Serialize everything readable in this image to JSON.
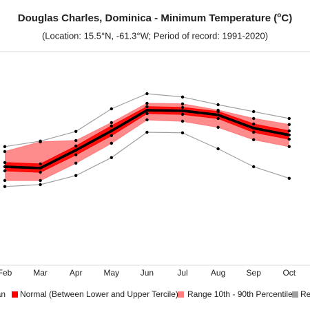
{
  "chart_data": {
    "type": "band-line",
    "title": [
      "Douglas Charles, Dominica - Minimum Temperature (",
      "o",
      "C)"
    ],
    "subtitle": "(Location: 15.5°N, -61.3°W; Period of record: 1991-2020)",
    "categories": [
      "Feb",
      "Mar",
      "Apr",
      "May",
      "Jun",
      "Jul",
      "Aug",
      "Sep",
      "Oct"
    ],
    "ylim": [
      18.5,
      26.5
    ],
    "bands": [
      {
        "name": "Record",
        "color": "#a0a0a0",
        "fill": false,
        "lower": [
          21.43,
          21.5,
          21.83,
          22.48,
          23.4,
          23.38,
          22.8,
          22.15,
          21.73
        ],
        "upper": [
          22.88,
          23.08,
          23.43,
          24.25,
          24.8,
          24.68,
          24.4,
          24.15,
          23.9
        ]
      },
      {
        "name": "Range 10th - 90th Percentile",
        "color": "#ff7f7f",
        "fill": true,
        "lower": [
          21.65,
          21.65,
          22.28,
          23.0,
          23.85,
          23.8,
          23.58,
          23.13,
          22.88
        ],
        "upper": [
          22.7,
          23.05,
          23.1,
          23.75,
          24.45,
          24.43,
          24.2,
          23.9,
          23.68
        ]
      },
      {
        "name": "Normal (Between Lower and Upper Tercile)",
        "color": "#ff0000",
        "fill": true,
        "lower": [
          22.0,
          21.95,
          22.58,
          23.28,
          24.08,
          24.05,
          23.9,
          23.4,
          23.15
        ],
        "upper": [
          22.3,
          22.25,
          22.9,
          23.63,
          24.33,
          24.3,
          24.15,
          23.7,
          23.45
        ]
      }
    ],
    "series": [
      {
        "name": "Mean",
        "color": "#000000",
        "values": [
          22.15,
          22.1,
          22.75,
          23.45,
          24.2,
          24.18,
          24.03,
          23.55,
          23.3
        ]
      }
    ]
  }
}
